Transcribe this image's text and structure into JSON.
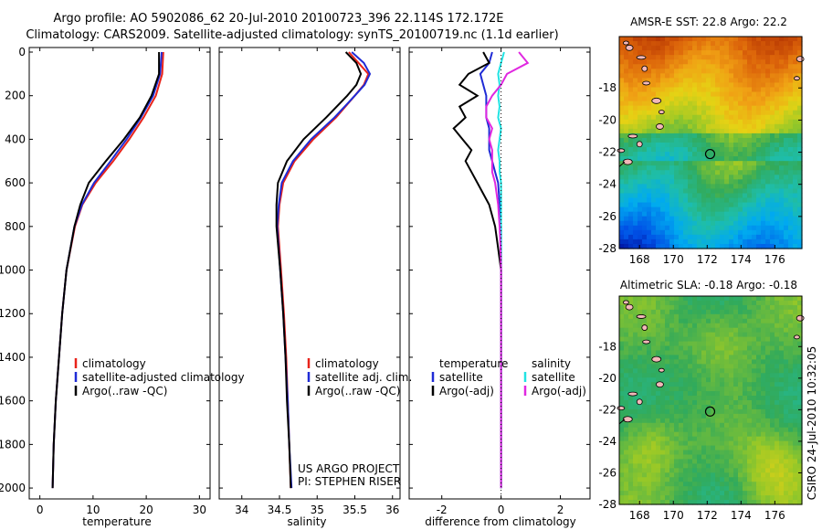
{
  "header": {
    "line1": "Argo profile: AO 5902086_62 20-Jul-2010 20100723_396 22.114S 172.172E",
    "line2": "Climatology: CARS2009. Satellite-adjusted climatology: synTS_20100719.nc (1.1d earlier)"
  },
  "side_text": "CSIRO 24-Jul-2010 10:32:05",
  "colors": {
    "red": "#e8231a",
    "blue": "#1f2bd6",
    "black": "#000000",
    "cyan": "#22e3e3",
    "magenta": "#e028e0"
  },
  "chart_data": [
    {
      "type": "line",
      "id": "temperature",
      "xlabel": "temperature",
      "xlim": [
        -2,
        32
      ],
      "ylim": [
        2050,
        0
      ],
      "xticks": [
        0,
        10,
        20,
        30
      ],
      "yticks": [
        0,
        200,
        400,
        600,
        800,
        1000,
        1200,
        1400,
        1600,
        1800,
        2000
      ],
      "depth": [
        0,
        100,
        200,
        300,
        400,
        500,
        600,
        700,
        800,
        1000,
        1200,
        1400,
        1600,
        1800,
        2000
      ],
      "series": [
        {
          "name": "climatology",
          "color": "red",
          "values": [
            23.2,
            23.0,
            21.8,
            19.5,
            16.8,
            13.8,
            10.5,
            8.0,
            6.6,
            5.0,
            4.2,
            3.6,
            3.0,
            2.6,
            2.4
          ]
        },
        {
          "name": "satellite-adjusted climatology",
          "color": "blue",
          "values": [
            22.9,
            22.6,
            21.3,
            19.0,
            16.3,
            13.3,
            10.2,
            7.9,
            6.5,
            5.0,
            4.2,
            3.6,
            3.0,
            2.6,
            2.4
          ]
        },
        {
          "name": "Argo(..raw -QC)",
          "color": "black",
          "values": [
            22.4,
            22.4,
            21.0,
            18.8,
            15.8,
            12.4,
            9.2,
            7.6,
            6.5,
            5.0,
            4.2,
            3.6,
            3.0,
            2.6,
            2.4
          ]
        }
      ],
      "legend": [
        "climatology",
        "satellite-adjusted climatology",
        "Argo(..raw -QC)"
      ]
    },
    {
      "type": "line",
      "id": "salinity",
      "xlabel": "salinity",
      "xlim": [
        33.7,
        36.1
      ],
      "ylim": [
        2050,
        0
      ],
      "xticks": [
        34,
        34.5,
        35,
        35.5,
        36
      ],
      "depth": [
        0,
        50,
        100,
        150,
        200,
        300,
        400,
        500,
        600,
        700,
        800,
        1000,
        1200,
        1400,
        1600,
        1800,
        2000
      ],
      "series": [
        {
          "name": "climatology",
          "color": "red",
          "values": [
            35.42,
            35.55,
            35.68,
            35.62,
            35.5,
            35.25,
            34.95,
            34.7,
            34.55,
            34.5,
            34.48,
            34.52,
            34.56,
            34.59,
            34.61,
            34.63,
            34.65
          ]
        },
        {
          "name": "satellite adj. clim.",
          "color": "blue",
          "values": [
            35.46,
            35.62,
            35.7,
            35.63,
            35.5,
            35.23,
            34.92,
            34.68,
            34.53,
            34.49,
            34.47,
            34.51,
            34.55,
            34.58,
            34.61,
            34.63,
            34.66
          ]
        },
        {
          "name": "Argo(..raw -QC)",
          "color": "black",
          "values": [
            35.38,
            35.52,
            35.58,
            35.52,
            35.4,
            35.12,
            34.82,
            34.6,
            34.48,
            34.46,
            34.46,
            34.51,
            34.55,
            34.58,
            34.6,
            34.63,
            34.65
          ]
        }
      ],
      "legend": [
        "climatology",
        "satellite adj. clim.",
        "Argo(..raw -QC)"
      ],
      "credit": [
        "US ARGO PROJECT",
        "PI: STEPHEN RISER"
      ]
    },
    {
      "type": "line",
      "id": "difference",
      "xlabel": "difference from climatology",
      "xlim": [
        -3.1,
        3.0
      ],
      "ylim": [
        2050,
        0
      ],
      "xticks": [
        -2,
        0,
        2
      ],
      "depth": [
        0,
        50,
        100,
        150,
        200,
        250,
        300,
        350,
        400,
        450,
        500,
        550,
        600,
        700,
        800,
        900,
        1000,
        1200,
        1400,
        1600,
        1800,
        2000
      ],
      "series": [
        {
          "name": "temperature satellite",
          "color": "blue",
          "values": [
            -0.3,
            -0.4,
            -0.7,
            -0.6,
            -0.5,
            -0.5,
            -0.5,
            -0.4,
            -0.4,
            -0.4,
            -0.3,
            -0.2,
            -0.1,
            -0.05,
            0,
            0,
            0,
            0,
            0,
            0,
            0,
            0
          ]
        },
        {
          "name": "temperature Argo(-adj)",
          "color": "black",
          "values": [
            -0.6,
            -0.4,
            -1.1,
            -1.4,
            -0.8,
            -1.4,
            -1.2,
            -1.6,
            -1.3,
            -1.0,
            -1.2,
            -1.0,
            -0.8,
            -0.4,
            -0.2,
            -0.1,
            0,
            0,
            0,
            0,
            0,
            0
          ]
        },
        {
          "name": "salinity satellite",
          "color": "cyan",
          "values": [
            0.1,
            0.0,
            -0.1,
            -0.05,
            -0.1,
            -0.05,
            -0.1,
            0.0,
            -0.05,
            -0.1,
            -0.05,
            -0.05,
            0.0,
            0.0,
            0.0,
            0.0,
            0.0,
            0.0,
            0.0,
            0.0,
            0.0,
            0.0
          ]
        },
        {
          "name": "salinity Argo(-adj)",
          "color": "magenta",
          "values": [
            0.6,
            0.9,
            0.2,
            0.0,
            -0.3,
            -0.5,
            -0.5,
            -0.3,
            -0.4,
            -0.3,
            -0.3,
            -0.3,
            -0.2,
            -0.1,
            -0.05,
            -0.02,
            0.0,
            0.0,
            0.0,
            0.0,
            0.0,
            0.0
          ]
        }
      ],
      "legend_temp_title": "temperature",
      "legend_sal_title": "salinity",
      "legend_temp": [
        "satellite",
        "Argo(-adj)"
      ],
      "legend_sal": [
        "satellite",
        "Argo(-adj)"
      ]
    },
    {
      "type": "heatmap",
      "id": "sst",
      "title": "AMSR-E SST: 22.8 Argo: 22.2",
      "xlim": [
        166.8,
        177.6
      ],
      "ylim": [
        -28,
        -14.8
      ],
      "xticks": [
        168,
        170,
        172,
        174,
        176
      ],
      "yticks": [
        -18,
        -20,
        -22,
        -24,
        -26,
        -28
      ],
      "marker": {
        "lon": 172.172,
        "lat": -22.114
      }
    },
    {
      "type": "heatmap",
      "id": "sla",
      "title": "Altimetric SLA: -0.18 Argo: -0.18",
      "xlim": [
        166.8,
        177.6
      ],
      "ylim": [
        -28,
        -14.8
      ],
      "xticks": [
        168,
        170,
        172,
        174,
        176
      ],
      "yticks": [
        -18,
        -20,
        -22,
        -24,
        -26,
        -28
      ],
      "marker": {
        "lon": 172.172,
        "lat": -22.114
      }
    }
  ]
}
